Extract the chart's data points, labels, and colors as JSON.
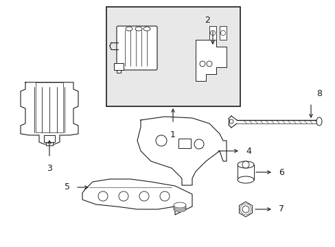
{
  "bg_color": "#ffffff",
  "line_color": "#1a1a1a",
  "box_bg": "#e8e8e8",
  "part_fill": "#ffffff",
  "gray_light": "#e0e0e0"
}
